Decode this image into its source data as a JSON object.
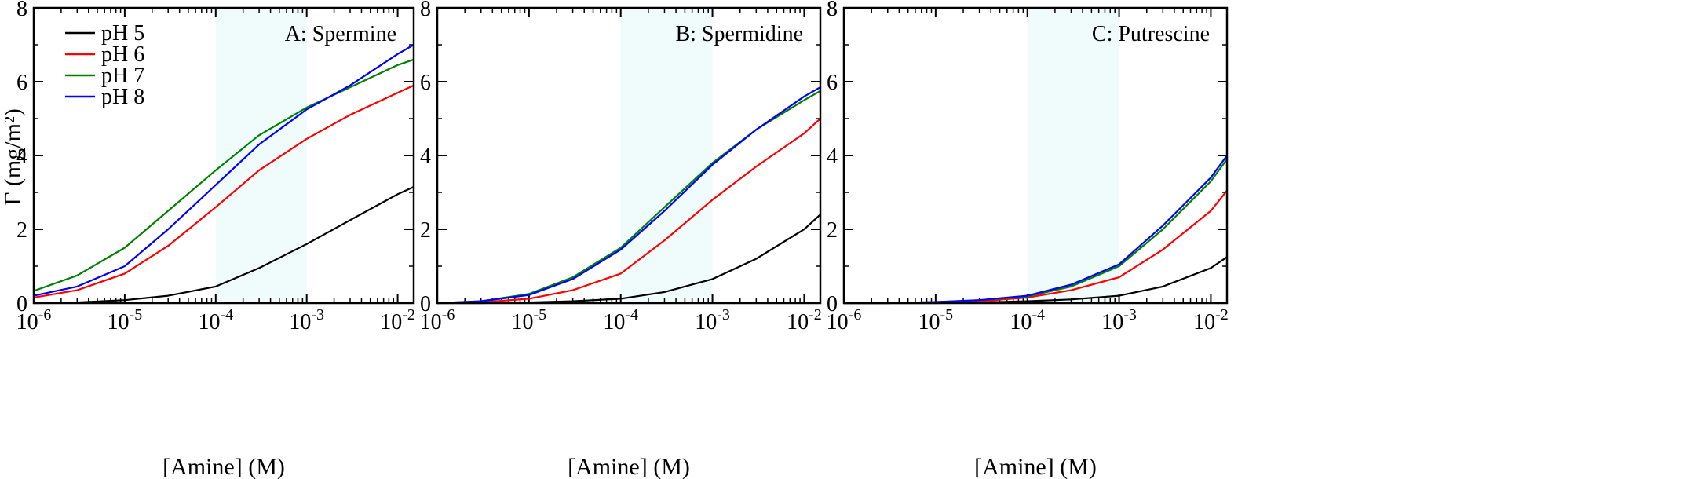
{
  "figure": {
    "ylabel": "Γ (mg/m²)",
    "xlabel": "[Amine] (M)"
  },
  "chart_data": [
    {
      "type": "line",
      "title": "A: Spermine",
      "xlabel": "[Amine] (M)",
      "ylabel": "Γ (mg/m²)",
      "xscale": "log",
      "xlim": [
        1e-06,
        0.015
      ],
      "ylim": [
        0,
        8
      ],
      "xticks": [
        "10^-6",
        "10^-5",
        "10^-4",
        "10^-3",
        "10^-2"
      ],
      "yticks": [
        "0",
        "2",
        "4",
        "6",
        "8"
      ],
      "shaded_x_range": [
        0.0001,
        0.001
      ],
      "legend": {
        "position": "top-left"
      },
      "x": [
        1e-06,
        3e-06,
        1e-05,
        3e-05,
        0.0001,
        0.0003,
        0.001,
        0.003,
        0.01,
        0.015
      ],
      "series": [
        {
          "name": "pH 5",
          "color": "#000000",
          "values": [
            0.0,
            0.02,
            0.08,
            0.2,
            0.45,
            0.95,
            1.6,
            2.25,
            2.95,
            3.15
          ]
        },
        {
          "name": "pH 6",
          "color": "#ff0000",
          "values": [
            0.15,
            0.35,
            0.8,
            1.55,
            2.6,
            3.6,
            4.45,
            5.1,
            5.7,
            5.9
          ]
        },
        {
          "name": "pH 7",
          "color": "#008000",
          "values": [
            0.33,
            0.75,
            1.5,
            2.5,
            3.6,
            4.55,
            5.3,
            5.85,
            6.45,
            6.6
          ]
        },
        {
          "name": "pH 8",
          "color": "#0000ff",
          "values": [
            0.2,
            0.45,
            1.0,
            2.0,
            3.2,
            4.3,
            5.25,
            5.9,
            6.75,
            7.0
          ]
        }
      ]
    },
    {
      "type": "line",
      "title": "B: Spermidine",
      "xlabel": "[Amine] (M)",
      "xscale": "log",
      "xlim": [
        1e-06,
        0.015
      ],
      "ylim": [
        0,
        8
      ],
      "xticks": [
        "10^-6",
        "10^-5",
        "10^-4",
        "10^-3",
        "10^-2"
      ],
      "yticks": [
        "0",
        "2",
        "4",
        "6",
        "8"
      ],
      "shaded_x_range": [
        0.0001,
        0.001
      ],
      "x": [
        1e-06,
        3e-06,
        1e-05,
        3e-05,
        0.0001,
        0.0003,
        0.001,
        0.003,
        0.01,
        0.015
      ],
      "series": [
        {
          "name": "pH 5",
          "color": "#000000",
          "values": [
            0.0,
            0.0,
            0.02,
            0.05,
            0.12,
            0.3,
            0.65,
            1.2,
            2.0,
            2.4
          ]
        },
        {
          "name": "pH 6",
          "color": "#ff0000",
          "values": [
            0.0,
            0.02,
            0.12,
            0.35,
            0.8,
            1.7,
            2.8,
            3.7,
            4.6,
            5.0
          ]
        },
        {
          "name": "pH 7",
          "color": "#008000",
          "values": [
            0.0,
            0.05,
            0.25,
            0.7,
            1.5,
            2.6,
            3.8,
            4.7,
            5.5,
            5.75
          ]
        },
        {
          "name": "pH 8",
          "color": "#0000ff",
          "values": [
            0.0,
            0.05,
            0.22,
            0.65,
            1.45,
            2.5,
            3.75,
            4.7,
            5.6,
            5.85
          ]
        }
      ]
    },
    {
      "type": "line",
      "title": "C: Putrescine",
      "xlabel": "[Amine] (M)",
      "xscale": "log",
      "xlim": [
        1e-06,
        0.015
      ],
      "ylim": [
        0,
        8
      ],
      "xticks": [
        "10^-6",
        "10^-5",
        "10^-4",
        "10^-3",
        "10^-2"
      ],
      "yticks": [
        "0",
        "2",
        "4",
        "6",
        "8"
      ],
      "shaded_x_range": [
        0.0001,
        0.001
      ],
      "x": [
        1e-06,
        3e-06,
        1e-05,
        3e-05,
        0.0001,
        0.0003,
        0.001,
        0.003,
        0.01,
        0.015
      ],
      "series": [
        {
          "name": "pH 5",
          "color": "#000000",
          "values": [
            0.0,
            0.0,
            0.0,
            0.02,
            0.05,
            0.1,
            0.2,
            0.45,
            0.95,
            1.25
          ]
        },
        {
          "name": "pH 6",
          "color": "#ff0000",
          "values": [
            0.0,
            0.0,
            0.02,
            0.05,
            0.15,
            0.35,
            0.7,
            1.45,
            2.5,
            3.05
          ]
        },
        {
          "name": "pH 7",
          "color": "#008000",
          "values": [
            0.0,
            0.0,
            0.03,
            0.08,
            0.18,
            0.45,
            1.0,
            2.0,
            3.3,
            3.9
          ]
        },
        {
          "name": "pH 8",
          "color": "#0000ff",
          "values": [
            0.0,
            0.0,
            0.03,
            0.08,
            0.2,
            0.5,
            1.05,
            2.1,
            3.4,
            4.0
          ]
        }
      ]
    }
  ]
}
